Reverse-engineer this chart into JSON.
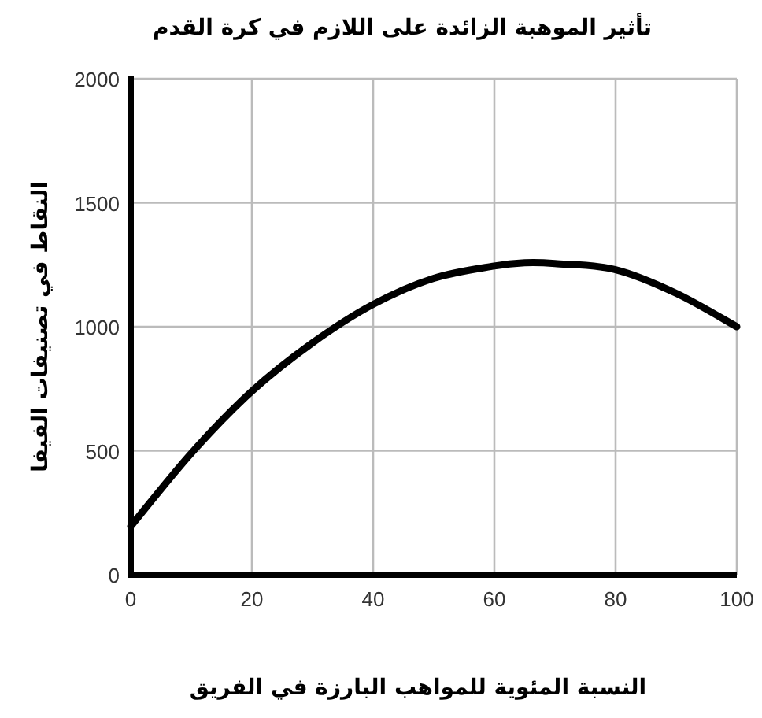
{
  "chart_data": {
    "type": "line",
    "title": "تأثير الموهبة الزائدة على اللازم في كرة القدم",
    "xlabel": "النسبة المئوية للمواهب البارزة في الفريق",
    "ylabel": "النقاط في تصنيفات الفيفا",
    "x": [
      0,
      10,
      20,
      30,
      40,
      50,
      60,
      65,
      70,
      80,
      90,
      100
    ],
    "values": [
      195,
      490,
      740,
      935,
      1090,
      1195,
      1245,
      1258,
      1255,
      1230,
      1135,
      1000
    ],
    "color": "#000000",
    "xlim": [
      0,
      100
    ],
    "ylim": [
      0,
      2000
    ],
    "xticks": [
      0,
      20,
      40,
      60,
      80,
      100
    ],
    "yticks": [
      0,
      500,
      1000,
      1500,
      2000
    ],
    "grid": true,
    "marker": "none",
    "line_style": "solid"
  }
}
